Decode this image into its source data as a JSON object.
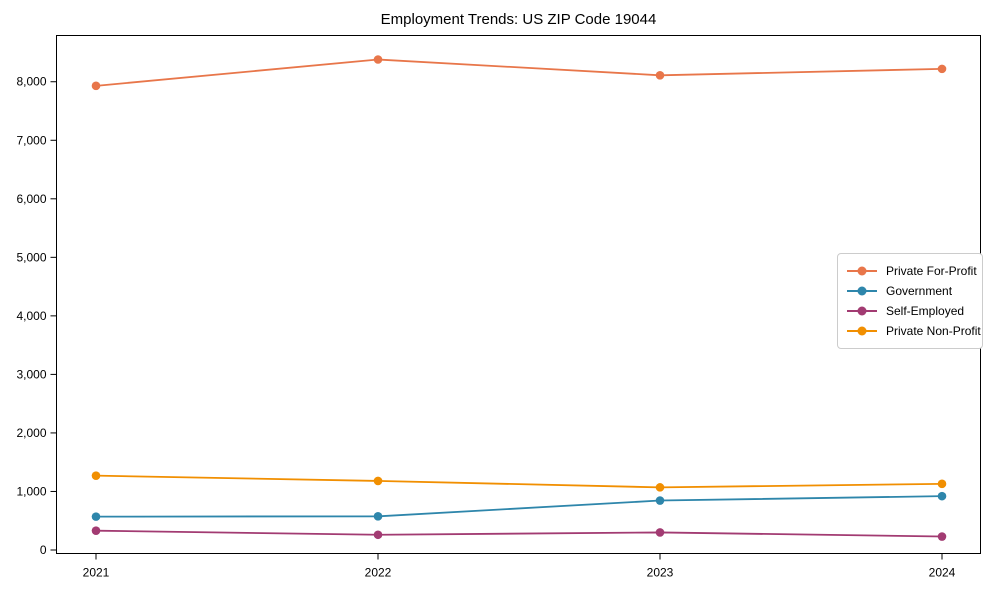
{
  "chart_data": {
    "type": "line",
    "title": "Employment Trends: US ZIP Code 19044",
    "x": [
      "2021",
      "2022",
      "2023",
      "2024"
    ],
    "series": [
      {
        "name": "Private For-Profit",
        "color": "#e8764a",
        "values": [
          7930,
          8380,
          8110,
          8220
        ]
      },
      {
        "name": "Government",
        "color": "#2e86ab",
        "values": [
          570,
          575,
          845,
          920
        ]
      },
      {
        "name": "Self-Employed",
        "color": "#a23b72",
        "values": [
          330,
          260,
          300,
          230
        ]
      },
      {
        "name": "Private Non-Profit",
        "color": "#f18f01",
        "values": [
          1270,
          1180,
          1070,
          1130
        ]
      }
    ],
    "yticks": {
      "values": [
        0,
        1000,
        2000,
        3000,
        4000,
        5000,
        6000,
        7000,
        8000
      ],
      "labels": [
        "0",
        "1,000",
        "2,000",
        "3,000",
        "4,000",
        "5,000",
        "6,000",
        "7,000",
        "8,000"
      ]
    },
    "ylim": [
      -60,
      8790
    ],
    "xlabel": "",
    "ylabel": "",
    "legend_position": "center-right",
    "grid": false,
    "marker": "circle"
  }
}
